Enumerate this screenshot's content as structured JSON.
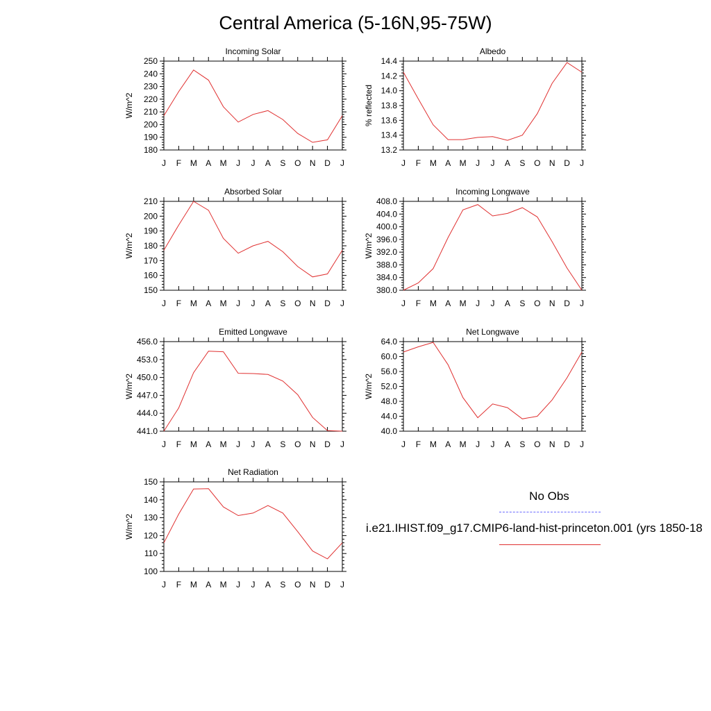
{
  "title": "Central America (5-16N,95-75W)",
  "months": [
    "J",
    "F",
    "M",
    "A",
    "M",
    "J",
    "J",
    "A",
    "S",
    "O",
    "N",
    "D",
    "J"
  ],
  "legend": {
    "obs_label": "No Obs",
    "model_label": "i.e21.IHIST.f09_g17.CMIP6-land-hist-princeton.001 (yrs 1850-18",
    "obs_color": "#6a6aff",
    "model_color": "#e03030"
  },
  "chart_data": [
    {
      "type": "line",
      "title": "Incoming Solar",
      "ylabel": "W/m^2",
      "ylim": [
        180,
        250
      ],
      "yticks": [
        180,
        190,
        200,
        210,
        220,
        230,
        240,
        250
      ],
      "yticklabels": [
        "180",
        "190",
        "200",
        "210",
        "220",
        "230",
        "240",
        "250"
      ],
      "series": [
        {
          "values": [
            207,
            226,
            243,
            235,
            214,
            202,
            208,
            211,
            204,
            193,
            186,
            188,
            207
          ]
        }
      ]
    },
    {
      "type": "line",
      "title": "Albedo",
      "ylabel": "% reflected",
      "ylim": [
        13.2,
        14.4
      ],
      "yticks": [
        13.2,
        13.4,
        13.6,
        13.8,
        14.0,
        14.2,
        14.4
      ],
      "yticklabels": [
        "13.2",
        "13.4",
        "13.6",
        "13.8",
        "14.0",
        "14.2",
        "14.4"
      ],
      "series": [
        {
          "values": [
            14.25,
            13.89,
            13.54,
            13.34,
            13.34,
            13.37,
            13.38,
            13.33,
            13.4,
            13.69,
            14.1,
            14.38,
            14.25
          ]
        }
      ]
    },
    {
      "type": "line",
      "title": "Absorbed Solar",
      "ylabel": "W/m^2",
      "ylim": [
        150,
        210
      ],
      "yticks": [
        150,
        160,
        170,
        180,
        190,
        200,
        210
      ],
      "yticklabels": [
        "150",
        "160",
        "170",
        "180",
        "190",
        "200",
        "210"
      ],
      "series": [
        {
          "values": [
            177,
            194,
            210,
            204,
            185,
            175,
            180,
            183,
            176,
            166,
            159,
            161,
            177
          ]
        }
      ]
    },
    {
      "type": "line",
      "title": "Incoming Longwave",
      "ylabel": "W/m^2",
      "ylim": [
        380,
        408
      ],
      "yticks": [
        380,
        384,
        388,
        392,
        396,
        400,
        404,
        408
      ],
      "yticklabels": [
        "380.0",
        "384.0",
        "388.0",
        "392.0",
        "396.0",
        "400.0",
        "404.0",
        "408.0"
      ],
      "series": [
        {
          "values": [
            380.0,
            382.3,
            386.8,
            396.6,
            405.3,
            407.0,
            403.4,
            404.2,
            406.0,
            403.1,
            395.3,
            387.0,
            380.0
          ]
        }
      ]
    },
    {
      "type": "line",
      "title": "Emitted Longwave",
      "ylabel": "W/m^2",
      "ylim": [
        441,
        456
      ],
      "yticks": [
        441,
        444,
        447,
        450,
        453,
        456
      ],
      "yticklabels": [
        "441.0",
        "444.0",
        "447.0",
        "450.0",
        "453.0",
        "456.0"
      ],
      "series": [
        {
          "values": [
            441.0,
            444.9,
            450.8,
            454.4,
            454.3,
            450.7,
            450.65,
            450.5,
            449.4,
            447.1,
            443.3,
            441.1,
            441.0
          ]
        }
      ]
    },
    {
      "type": "line",
      "title": "Net Longwave",
      "ylabel": "W/m^2",
      "ylim": [
        40,
        64
      ],
      "yticks": [
        40,
        44,
        48,
        52,
        56,
        60,
        64
      ],
      "yticklabels": [
        "40.0",
        "44.0",
        "48.0",
        "52.0",
        "56.0",
        "60.0",
        "64.0"
      ],
      "series": [
        {
          "values": [
            61.2,
            62.6,
            63.8,
            57.8,
            49.0,
            43.6,
            47.3,
            46.3,
            43.3,
            44.0,
            48.4,
            54.3,
            61.2
          ]
        }
      ]
    },
    {
      "type": "line",
      "title": "Net Radiation",
      "ylabel": "W/m^2",
      "ylim": [
        100,
        150
      ],
      "yticks": [
        100,
        110,
        120,
        130,
        140,
        150
      ],
      "yticklabels": [
        "100",
        "110",
        "120",
        "130",
        "140",
        "150"
      ],
      "series": [
        {
          "values": [
            116,
            132,
            146,
            146.2,
            136,
            131.2,
            132.6,
            136.8,
            132.6,
            122.2,
            111.4,
            107,
            116
          ]
        }
      ]
    }
  ]
}
